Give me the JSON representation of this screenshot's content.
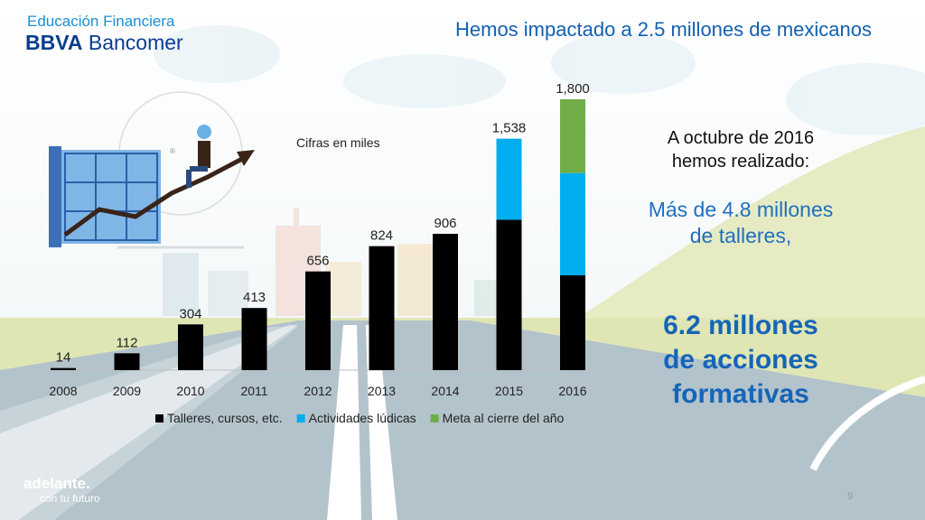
{
  "branding": {
    "line1": "Educación Financiera",
    "line2_bold": "BBVA",
    "line2_rest": " Bancomer"
  },
  "headline": "Hemos impactado a 2.5 millones de mexicanos",
  "chart_note": "Cifras en miles",
  "side_text": {
    "date_line1": "A octubre de 2016",
    "date_line2": "hemos realizado:",
    "talleres_line1": "Más de 4.8 millones",
    "talleres_line2": "de talleres,",
    "acciones_line1": "6.2 millones",
    "acciones_line2": "de acciones",
    "acciones_line3": "formativas"
  },
  "tagline": {
    "line1": "adelante.",
    "line2": "con tu futuro"
  },
  "page_number": "9",
  "colors": {
    "talleres": "#000000",
    "ludicas": "#00aeef",
    "meta": "#70ad47",
    "headline": "#1260b0"
  },
  "chart_data": {
    "type": "bar",
    "stacked": true,
    "categories": [
      "2008",
      "2009",
      "2010",
      "2011",
      "2012",
      "2013",
      "2014",
      "2015",
      "2016"
    ],
    "series": [
      {
        "name": "Talleres, cursos, etc.",
        "values": [
          14,
          112,
          304,
          413,
          656,
          824,
          906,
          1000,
          630
        ]
      },
      {
        "name": "Actividades lúdicas",
        "values": [
          0,
          0,
          0,
          0,
          0,
          0,
          0,
          538,
          680
        ]
      },
      {
        "name": "Meta al cierre del año",
        "values": [
          0,
          0,
          0,
          0,
          0,
          0,
          0,
          0,
          490
        ]
      }
    ],
    "totals": [
      "14",
      "112",
      "304",
      "413",
      "656",
      "824",
      "906",
      "1,538",
      "1,800"
    ],
    "ylim": [
      0,
      1800
    ],
    "grid": false,
    "legend_position": "bottom"
  }
}
